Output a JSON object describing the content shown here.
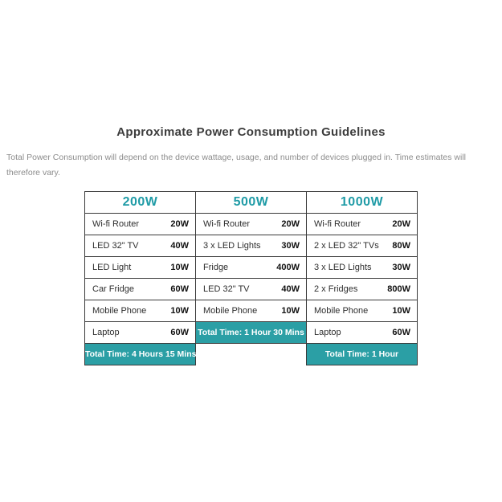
{
  "page": {
    "title": "Approximate Power Consumption Guidelines",
    "subtitle": "Total Power Consumption will depend on the device wattage, usage, and number of devices plugged in. Time estimates will therefore vary."
  },
  "colors": {
    "teal_accent_text": "#1f9ba6",
    "teal_fill": "#2b9fa5",
    "border": "#3a3a3a",
    "subtitle_gray": "#8c8c8c"
  },
  "chart_data": {
    "type": "table",
    "title": "Approximate Power Consumption Guidelines",
    "subtitle": "Total Power Consumption will depend on the device wattage, usage, and number of devices plugged in. Time estimates will therefore vary.",
    "columns": [
      {
        "header": "200W",
        "devices": [
          {
            "name": "Wi-fi Router",
            "watts": "20W"
          },
          {
            "name": "LED 32\" TV",
            "watts": "40W"
          },
          {
            "name": "LED Light",
            "watts": "10W"
          },
          {
            "name": "Car Fridge",
            "watts": "60W"
          },
          {
            "name": "Mobile Phone",
            "watts": "10W"
          },
          {
            "name": "Laptop",
            "watts": "60W"
          }
        ],
        "total_time": "Total Time: 4 Hours 15 Mins"
      },
      {
        "header": "500W",
        "devices": [
          {
            "name": "Wi-fi Router",
            "watts": "20W"
          },
          {
            "name": "3 x LED Lights",
            "watts": "30W"
          },
          {
            "name": "Fridge",
            "watts": "400W"
          },
          {
            "name": "LED 32\" TV",
            "watts": "40W"
          },
          {
            "name": "Mobile Phone",
            "watts": "10W"
          }
        ],
        "total_time": "Total Time: 1 Hour 30 Mins"
      },
      {
        "header": "1000W",
        "devices": [
          {
            "name": "Wi-fi Router",
            "watts": "20W"
          },
          {
            "name": "2 x LED 32\" TVs",
            "watts": "80W"
          },
          {
            "name": "3 x LED Lights",
            "watts": "30W"
          },
          {
            "name": "2 x Fridges",
            "watts": "800W"
          },
          {
            "name": "Mobile Phone",
            "watts": "10W"
          },
          {
            "name": "Laptop",
            "watts": "60W"
          }
        ],
        "total_time": "Total Time: 1 Hour"
      }
    ]
  }
}
